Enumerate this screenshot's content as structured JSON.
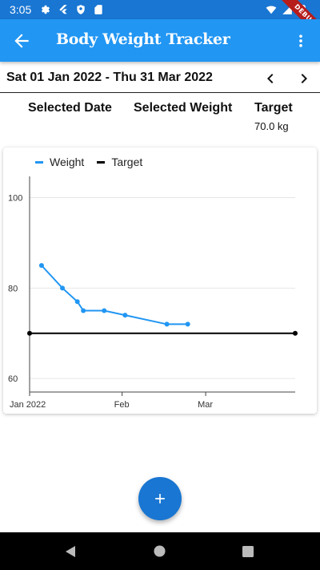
{
  "status_bar": {
    "time": "3:05",
    "debug_label": "DEBUG"
  },
  "app_bar": {
    "title": "Body Weight Tracker"
  },
  "date_range": {
    "label": "Sat 01 Jan 2022 - Thu 31 Mar 2022"
  },
  "info": {
    "selected_date_label": "Selected Date",
    "selected_weight_label": "Selected Weight",
    "target_label": "Target",
    "target_value": "70.0 kg"
  },
  "colors": {
    "app_bar": "#2196F3",
    "status_bar": "#1976D2",
    "weight_series": "#2196F3",
    "target_series": "#000000",
    "fab": "#1976D2"
  },
  "chart_data": {
    "type": "line",
    "legend": [
      "Weight",
      "Target"
    ],
    "x_ticks": [
      "Jan 2022",
      "Feb",
      "Mar"
    ],
    "y_ticks": [
      "60",
      "80",
      "100"
    ],
    "ylim": [
      57,
      104
    ],
    "xlim": [
      "2022-01-01",
      "2022-03-31"
    ],
    "grid": true,
    "series": [
      {
        "name": "Weight",
        "points": [
          {
            "x": "2022-01-05",
            "y": 85
          },
          {
            "x": "2022-01-12",
            "y": 80
          },
          {
            "x": "2022-01-17",
            "y": 77
          },
          {
            "x": "2022-01-19",
            "y": 75
          },
          {
            "x": "2022-01-26",
            "y": 75
          },
          {
            "x": "2022-02-02",
            "y": 74
          },
          {
            "x": "2022-02-16",
            "y": 72
          },
          {
            "x": "2022-02-23",
            "y": 72
          }
        ]
      },
      {
        "name": "Target",
        "points": [
          {
            "x": "2022-01-01",
            "y": 70
          },
          {
            "x": "2022-03-31",
            "y": 70
          }
        ]
      }
    ]
  }
}
